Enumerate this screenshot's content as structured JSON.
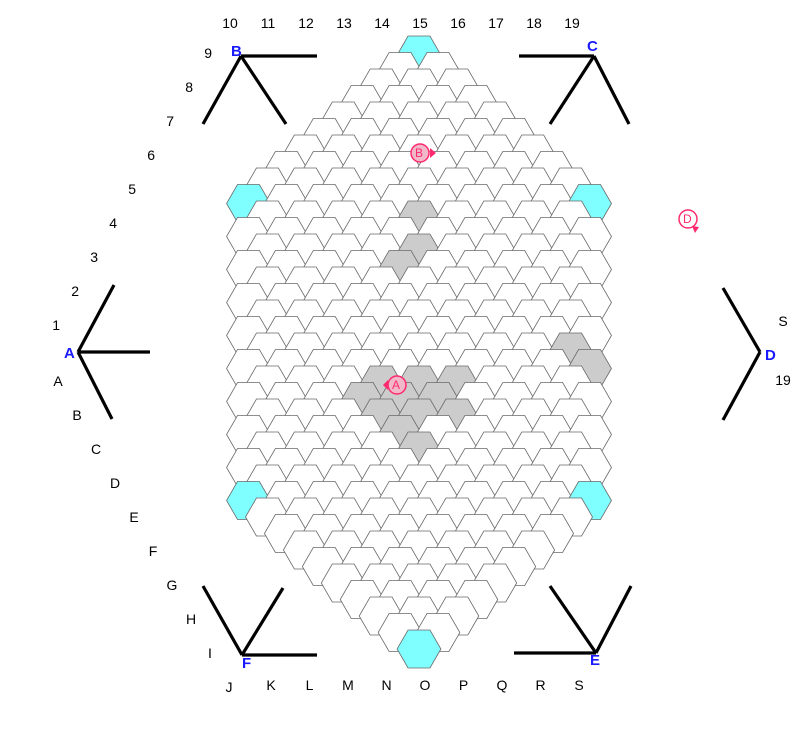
{
  "board": {
    "number_labels": [
      "1",
      "2",
      "3",
      "4",
      "5",
      "6",
      "7",
      "8",
      "9",
      "10",
      "11",
      "12",
      "13",
      "14",
      "15",
      "16",
      "17",
      "18",
      "19"
    ],
    "letter_labels": [
      "A",
      "B",
      "C",
      "D",
      "E",
      "F",
      "G",
      "H",
      "I",
      "J",
      "K",
      "L",
      "M",
      "N",
      "O",
      "P",
      "Q",
      "R",
      "S"
    ],
    "right_labels": {
      "top": "S",
      "bottom": "19"
    },
    "corners": [
      {
        "id": "A",
        "label": "A",
        "fill": "#7fffff"
      },
      {
        "id": "B",
        "label": "B",
        "fill": "#7fffff"
      },
      {
        "id": "C",
        "label": "C",
        "fill": "#7fffff"
      },
      {
        "id": "D",
        "label": "D",
        "fill": "#7fffff"
      },
      {
        "id": "E",
        "label": "E",
        "fill": "#7fffff"
      },
      {
        "id": "F",
        "label": "F",
        "fill": "#7fffff"
      }
    ],
    "pieces": [
      {
        "label": "A",
        "color": "#ff2a6d",
        "fill": "#f0b8c8",
        "hex_fill": "#cccccc"
      },
      {
        "label": "B",
        "color": "#ff2a6d",
        "fill": "#f0b8c8",
        "hex_fill": "#cccccc"
      },
      {
        "label": "D",
        "color": "#ff2a6d",
        "fill": "#ffffff",
        "hex_fill": "#ffffff"
      }
    ],
    "colors": {
      "empty": "#ffffff",
      "shaded": "#cccccc",
      "grid": "#6a6a6a",
      "corner": "#7fffff"
    }
  }
}
